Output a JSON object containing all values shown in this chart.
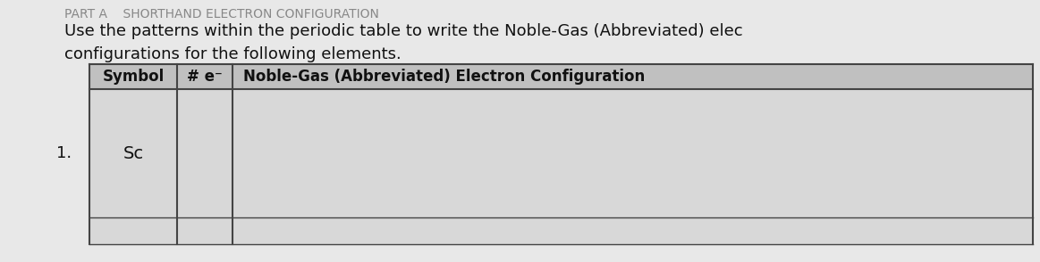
{
  "background_color": "#e8e8e8",
  "title_line1": "Use the patterns within the periodic table to write the Noble-Gas (Abbreviated) elec",
  "title_line2": "configurations for the following elements.",
  "part_label": "PART A    SHORTHAND ELECTRON CONFIGURATION",
  "col_header_symbol": "Symbol",
  "col_header_e": "# e⁻",
  "col_header_ng": "Noble-Gas (Abbreviated) Electron Configuration",
  "row_number": "1.",
  "row_symbol": "Sc",
  "header_bg": "#c0c0c0",
  "cell_bg": "#d8d8d8",
  "border_color": "#444444",
  "text_color": "#111111",
  "header_fontsize": 12,
  "body_fontsize": 13,
  "title_fontsize": 13,
  "part_fontsize": 10
}
